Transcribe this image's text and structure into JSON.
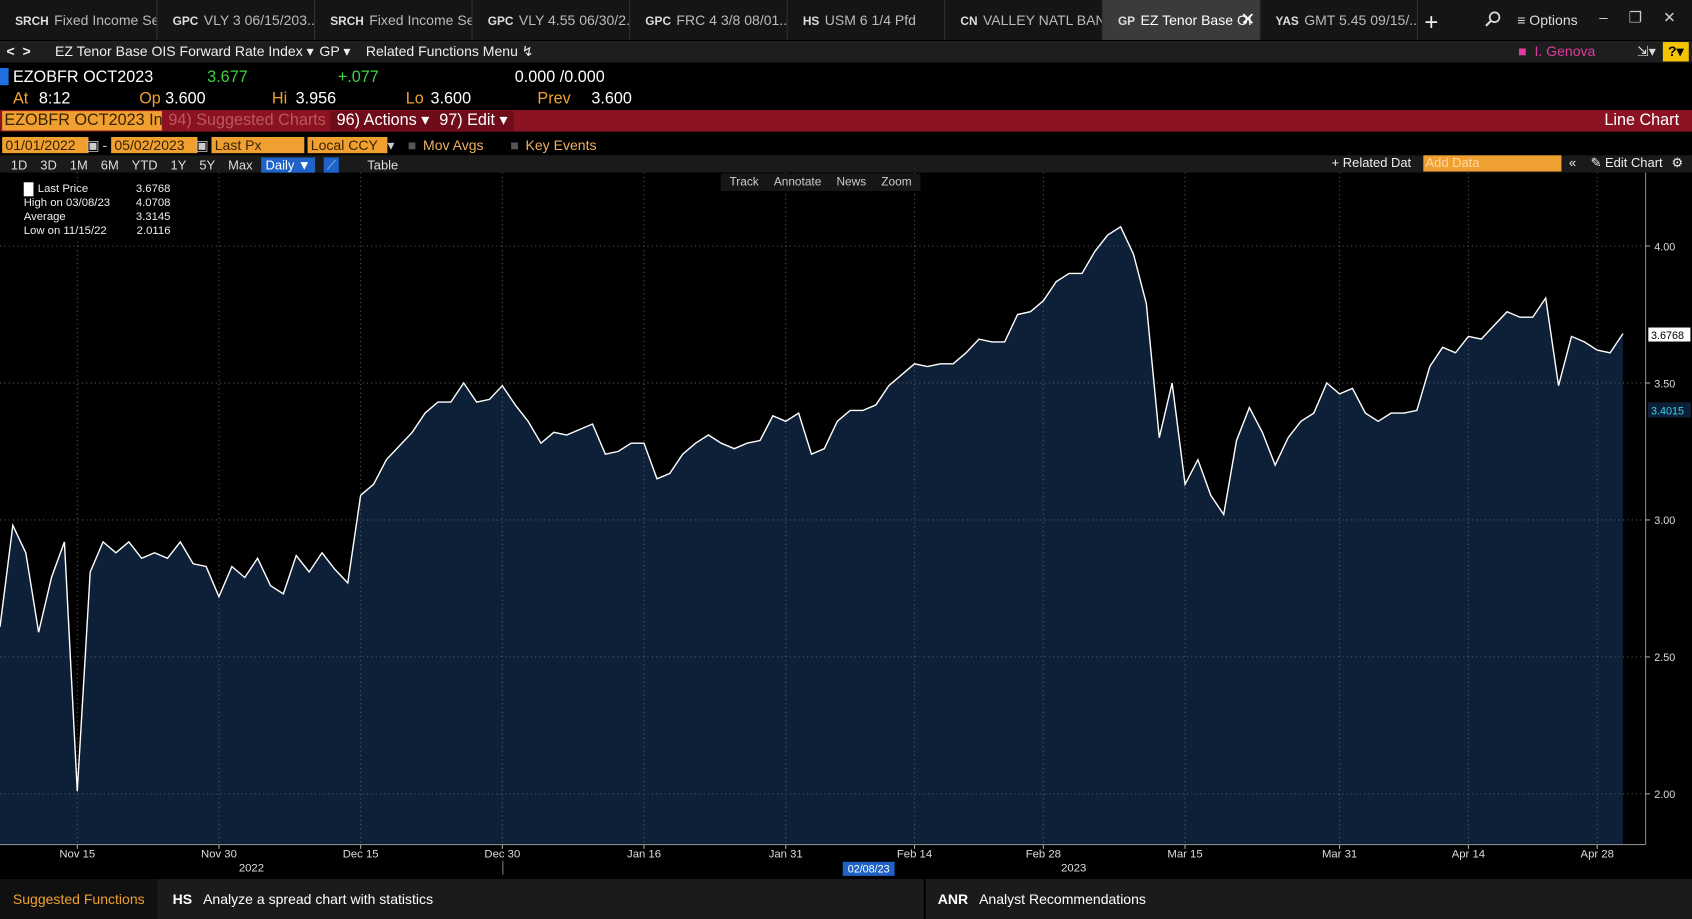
{
  "tabs": [
    {
      "code": "SRCH",
      "label": "Fixed Income Se.."
    },
    {
      "code": "GPC",
      "label": "VLY 3 06/15/203..."
    },
    {
      "code": "SRCH",
      "label": "Fixed Income Se.."
    },
    {
      "code": "GPC",
      "label": "VLY 4.55 06/30/2..."
    },
    {
      "code": "GPC",
      "label": "FRC 4 3/8 08/01..."
    },
    {
      "code": "HS",
      "label": "USM 6 1/4 Pfd"
    },
    {
      "code": "CN",
      "label": "VALLEY NATL BANC ..."
    },
    {
      "code": "GP",
      "label": "EZ Tenor Base OI"
    },
    {
      "code": "YAS",
      "label": "GMT 5.45 09/15/..."
    }
  ],
  "window": {
    "options": "≡ Options"
  },
  "nav": {
    "title": "EZ Tenor Base OIS Forward Rate Index ▾",
    "source": "GP ▾",
    "menu": "Related Functions Menu ↯",
    "user": "I. Genova"
  },
  "quote": {
    "ticker": "EZOBFR OCT2023",
    "last": "3.677",
    "change": "+.077",
    "bidask": "0.000 /0.000",
    "at_label": "At",
    "at": "8:12",
    "op_label": "Op",
    "op": "3.600",
    "hi_label": "Hi",
    "hi": "3.956",
    "lo_label": "Lo",
    "lo": "3.600",
    "prev_label": "Prev",
    "prev": "3.600"
  },
  "toolbar": {
    "security": "EZOBFR OCT2023 In",
    "suggested": "94) Suggested Charts",
    "actions": "96) Actions ▾",
    "edit": "97) Edit ▾",
    "chart_type": "Line Chart"
  },
  "controls": {
    "start": "01/01/2022",
    "dash": "-",
    "end": "05/02/2023",
    "field": "Last Px",
    "currency": "Local CCY",
    "mov_avgs": "Mov Avgs",
    "key_events": "Key Events"
  },
  "periods": [
    "1D",
    "3D",
    "1M",
    "6M",
    "YTD",
    "1Y",
    "5Y",
    "Max"
  ],
  "frequency": "Daily ▼",
  "table": "Table",
  "related": "+ Related Dat",
  "add_data": "Add Data",
  "edit_chart": "Edit Chart",
  "chart_tools": [
    "Track",
    "Annotate",
    "News",
    "Zoom"
  ],
  "legend": [
    {
      "label": "Last Price",
      "value": "3.6768"
    },
    {
      "label": "High on 03/08/23",
      "value": "4.0708"
    },
    {
      "label": "Average",
      "value": "3.3145"
    },
    {
      "label": "Low on 11/15/22",
      "value": "2.0116"
    }
  ],
  "chart_data": {
    "type": "line",
    "grid": true,
    "fill": "#0d2038",
    "categories": [
      null,
      null,
      null,
      null,
      null,
      null,
      "Nov 15",
      null,
      null,
      null,
      null,
      null,
      null,
      null,
      null,
      null,
      null,
      "Nov 30",
      null,
      null,
      null,
      null,
      null,
      null,
      null,
      null,
      null,
      null,
      "Dec 15",
      null,
      null,
      null,
      null,
      null,
      null,
      null,
      null,
      null,
      null,
      "Dec 30",
      null,
      null,
      null,
      null,
      null,
      null,
      null,
      null,
      null,
      null,
      "Jan 16",
      null,
      null,
      null,
      null,
      null,
      null,
      null,
      null,
      null,
      null,
      "Jan 31",
      null,
      null,
      null,
      null,
      null,
      null,
      null,
      null,
      null,
      "Feb 14",
      null,
      null,
      null,
      null,
      null,
      null,
      null,
      null,
      null,
      "Feb 28",
      null,
      null,
      null,
      null,
      null,
      null,
      null,
      null,
      null,
      null,
      "Mar 15",
      null,
      null,
      null,
      null,
      null,
      null,
      null,
      null,
      null,
      null,
      null,
      "Mar 31",
      null,
      null,
      null,
      null,
      null,
      null,
      null,
      null,
      null,
      "Apr 14",
      null,
      null,
      null,
      null,
      null,
      null,
      null,
      null,
      null,
      "Apr 28",
      null,
      null
    ],
    "series": [
      {
        "name": "Last Price",
        "color": "#ffffff",
        "values": [
          2.61,
          2.98,
          2.88,
          2.59,
          2.79,
          2.92,
          2.01,
          2.81,
          2.92,
          2.88,
          2.92,
          2.86,
          2.88,
          2.86,
          2.92,
          2.84,
          2.83,
          2.72,
          2.83,
          2.79,
          2.86,
          2.76,
          2.73,
          2.87,
          2.81,
          2.88,
          2.82,
          2.77,
          3.09,
          3.13,
          3.22,
          3.27,
          3.32,
          3.39,
          3.43,
          3.43,
          3.5,
          3.43,
          3.44,
          3.49,
          3.42,
          3.36,
          3.28,
          3.32,
          3.31,
          3.33,
          3.35,
          3.24,
          3.25,
          3.28,
          3.28,
          3.15,
          3.17,
          3.24,
          3.28,
          3.31,
          3.28,
          3.26,
          3.28,
          3.29,
          3.38,
          3.36,
          3.39,
          3.24,
          3.26,
          3.36,
          3.4,
          3.4,
          3.42,
          3.49,
          3.53,
          3.57,
          3.56,
          3.57,
          3.57,
          3.61,
          3.66,
          3.65,
          3.65,
          3.75,
          3.76,
          3.8,
          3.87,
          3.9,
          3.9,
          3.98,
          4.04,
          4.07,
          3.97,
          3.79,
          3.3,
          3.5,
          3.13,
          3.22,
          3.09,
          3.02,
          3.29,
          3.41,
          3.32,
          3.2,
          3.3,
          3.36,
          3.39,
          3.5,
          3.46,
          3.48,
          3.39,
          3.36,
          3.39,
          3.39,
          3.4,
          3.56,
          3.63,
          3.61,
          3.67,
          3.66,
          3.71,
          3.76,
          3.74,
          3.74,
          3.81,
          3.49,
          3.67,
          3.65,
          3.62,
          3.61,
          3.68
        ]
      }
    ],
    "ylim": [
      1.815,
      4.268
    ],
    "yticks": [
      {
        "value": 2,
        "label": "2.00"
      },
      {
        "value": 2.5,
        "label": "2.50"
      },
      {
        "value": 3,
        "label": "3.00"
      },
      {
        "value": 3.5,
        "label": "3.50"
      },
      {
        "value": 4,
        "label": "4.00"
      }
    ],
    "markers": [
      {
        "value": 3.6768,
        "label": "3.6768",
        "color": "#ffffff"
      },
      {
        "value": 3.4015,
        "label": "3.4015",
        "color": "#3ad0e8"
      }
    ],
    "year_labels": [
      "2022",
      "2023"
    ],
    "cursor_label": "02/08/23"
  },
  "footer": {
    "suggested": "Suggested Functions",
    "items": [
      {
        "code": "HS",
        "label": "Analyze a spread chart with statistics"
      },
      {
        "code": "ANR",
        "label": "Analyst Recommendations"
      }
    ]
  }
}
